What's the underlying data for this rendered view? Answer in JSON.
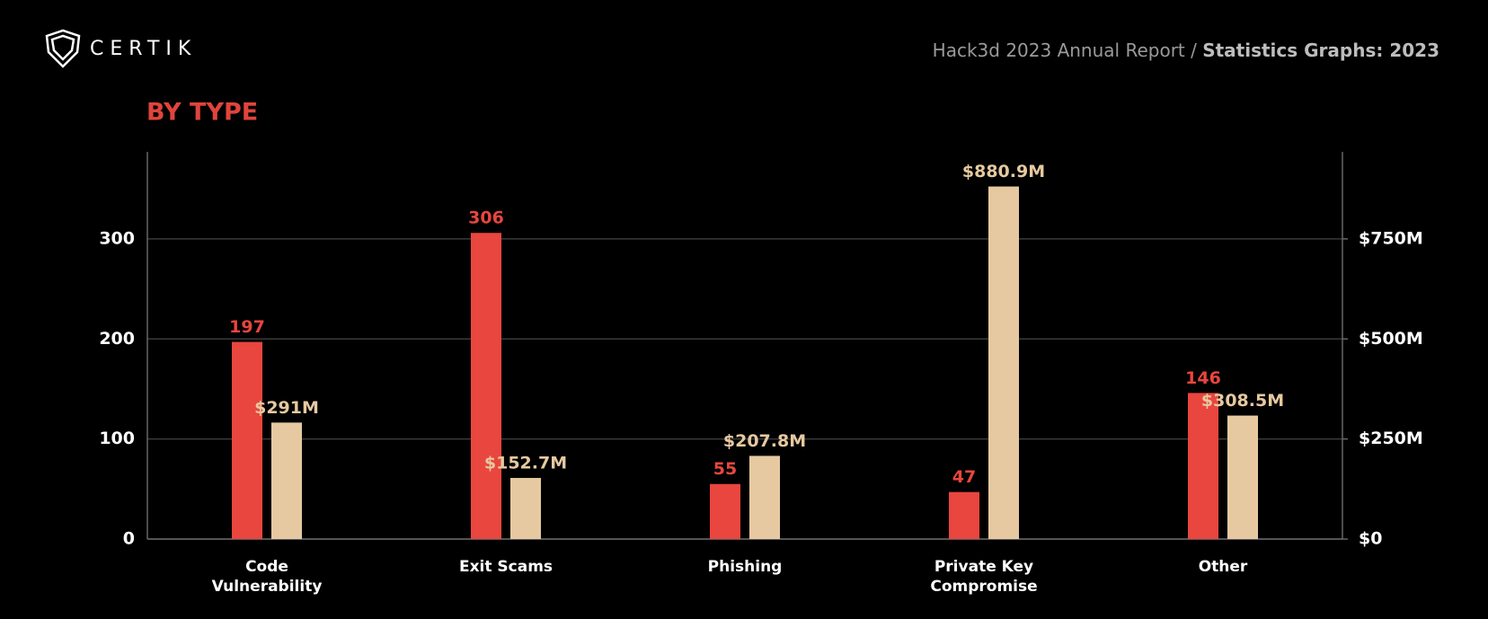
{
  "header": {
    "brand": "CERTIK",
    "breadcrumb": "Hack3d 2023 Annual Report /",
    "section": "Statistics Graphs: 2023"
  },
  "chart_data": {
    "type": "bar",
    "title": "BY TYPE",
    "categories": [
      "Code Vulnerability",
      "Exit Scams",
      "Phishing",
      "Private Key Compromise",
      "Other"
    ],
    "series": [
      {
        "color": "#e8463e",
        "values": [
          197,
          306,
          55,
          47,
          146
        ]
      },
      {
        "color": "#e6c9a0",
        "axis": "y2",
        "values": [
          291,
          152.7,
          207.8,
          880.9,
          308.5
        ],
        "value_labels": [
          "$291M",
          "$152.7M",
          "$207.8M",
          "$880.9M",
          "$308.5M"
        ]
      }
    ],
    "ylim": [
      0,
      387
    ],
    "yticks": [
      0,
      100,
      200,
      300
    ],
    "y2lim": [
      0,
      967.5
    ],
    "y2ticks": [
      {
        "value": 0,
        "label": "$0"
      },
      {
        "value": 250,
        "label": "$250M"
      },
      {
        "value": 500,
        "label": "$500M"
      },
      {
        "value": 750,
        "label": "$750M"
      }
    ],
    "grid": true
  }
}
